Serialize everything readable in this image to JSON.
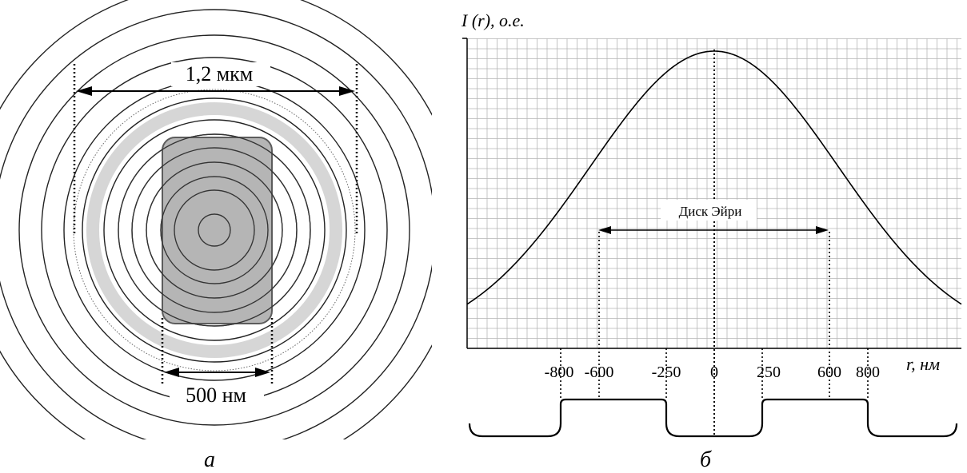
{
  "panel_a": {
    "width_label": "1,2 мкм",
    "rect_label": "500 нм",
    "caption": "а"
  },
  "panel_b": {
    "y_axis_label": "I (r), о.е.",
    "x_axis_label": "r, нм",
    "annotation": "Диск Эйри",
    "caption": "б",
    "tick_labels": [
      "-800",
      "-600",
      "-250",
      "0",
      "250",
      "600",
      "800"
    ],
    "tick_values": [
      -800,
      -600,
      -250,
      0,
      250,
      600,
      800
    ],
    "airy_disk_range": [
      -600,
      600
    ],
    "profile_steps": [
      {
        "from": -800,
        "to": -250,
        "level": "high"
      },
      {
        "from": -250,
        "to": 250,
        "level": "low"
      },
      {
        "from": 250,
        "to": 800,
        "level": "high"
      }
    ]
  }
}
